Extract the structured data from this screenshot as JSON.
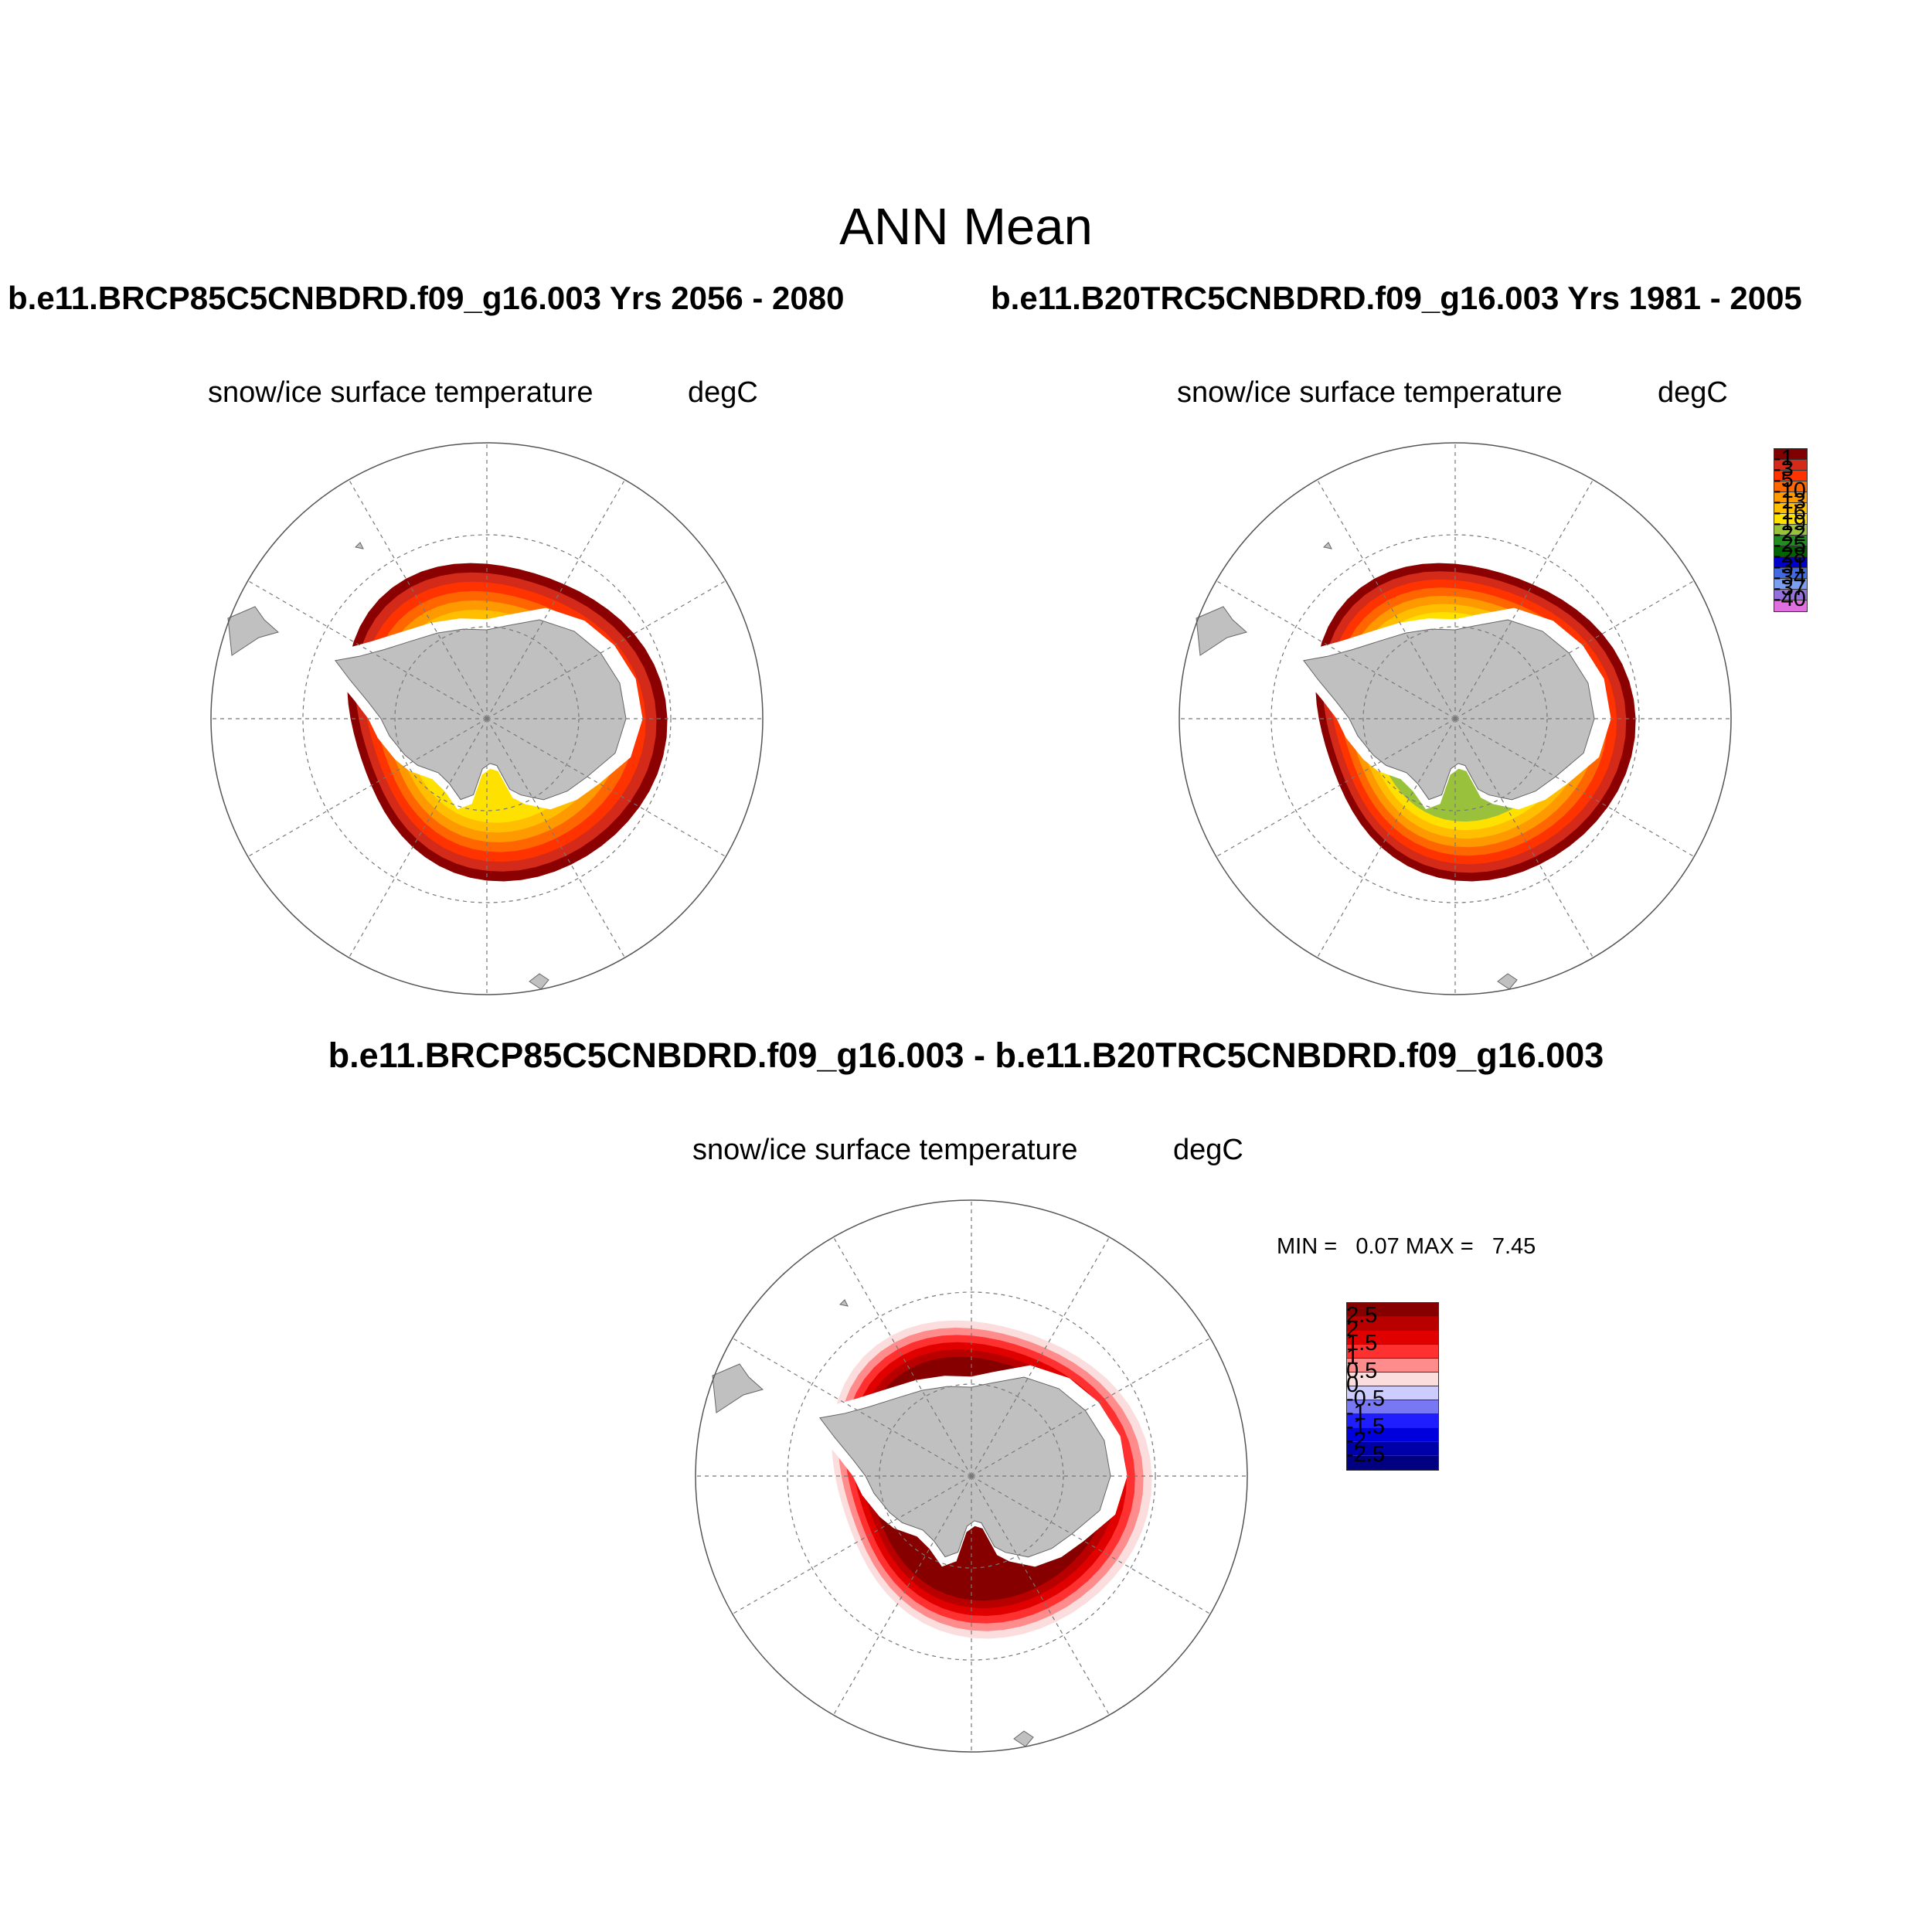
{
  "title": "ANN Mean",
  "panels": [
    {
      "id": "top-left",
      "case_title": "b.e11.BRCP85C5CNBDRD.f09_g16.003  Yrs 2056 - 2080",
      "variable": "snow/ice surface temperature",
      "units": "degC",
      "bands": [
        "#8B0000",
        "#D32A1A",
        "#FF3300",
        "#FF6600",
        "#FF9900",
        "#FFBF00",
        "#FFE100"
      ],
      "yellow_extent": "ross_weddell"
    },
    {
      "id": "top-right",
      "case_title": "b.e11.B20TRC5CNBDRD.f09_g16.003  Yrs 1981 - 2005",
      "variable": "snow/ice surface temperature",
      "units": "degC",
      "bands": [
        "#8B0000",
        "#D32A1A",
        "#FF3300",
        "#FF6600",
        "#FF9900",
        "#FFBF00",
        "#FFE100",
        "#99C13B"
      ],
      "yellow_extent": "full"
    }
  ],
  "colorbar_abs": {
    "labels": [
      "-1",
      "-3",
      "-5",
      "-10",
      "-13",
      "-16",
      "-19",
      "-22",
      "-25",
      "-28",
      "-31",
      "-34",
      "-37",
      "-40"
    ],
    "colors": [
      "#800000",
      "#D32A1A",
      "#FF3300",
      "#FF6600",
      "#FF9900",
      "#FFBF00",
      "#FFE100",
      "#99C13B",
      "#228B22",
      "#006400",
      "#0000CD",
      "#4169E1",
      "#7B9EF0",
      "#9370DB",
      "#E070E0"
    ]
  },
  "difference": {
    "title": "b.e11.BRCP85C5CNBDRD.f09_g16.003 - b.e11.B20TRC5CNBDRD.f09_g16.003",
    "variable": "snow/ice surface temperature",
    "units": "degC",
    "min_label": "MIN =",
    "min_value": "0.07",
    "max_label": "MAX =",
    "max_value": "7.45"
  },
  "colorbar_diff": {
    "labels": [
      "2.5",
      "2",
      "1.5",
      "1",
      "0.5",
      "0",
      "-0.5",
      "-1",
      "-1.5",
      "-2",
      "-2.5"
    ],
    "colors": [
      "#870000",
      "#B80000",
      "#E00000",
      "#FF3030",
      "#FF8C8C",
      "#FCDDDD",
      "#CCCCFF",
      "#7878F5",
      "#1E1EFF",
      "#0000DC",
      "#0000A8",
      "#000080"
    ]
  }
}
